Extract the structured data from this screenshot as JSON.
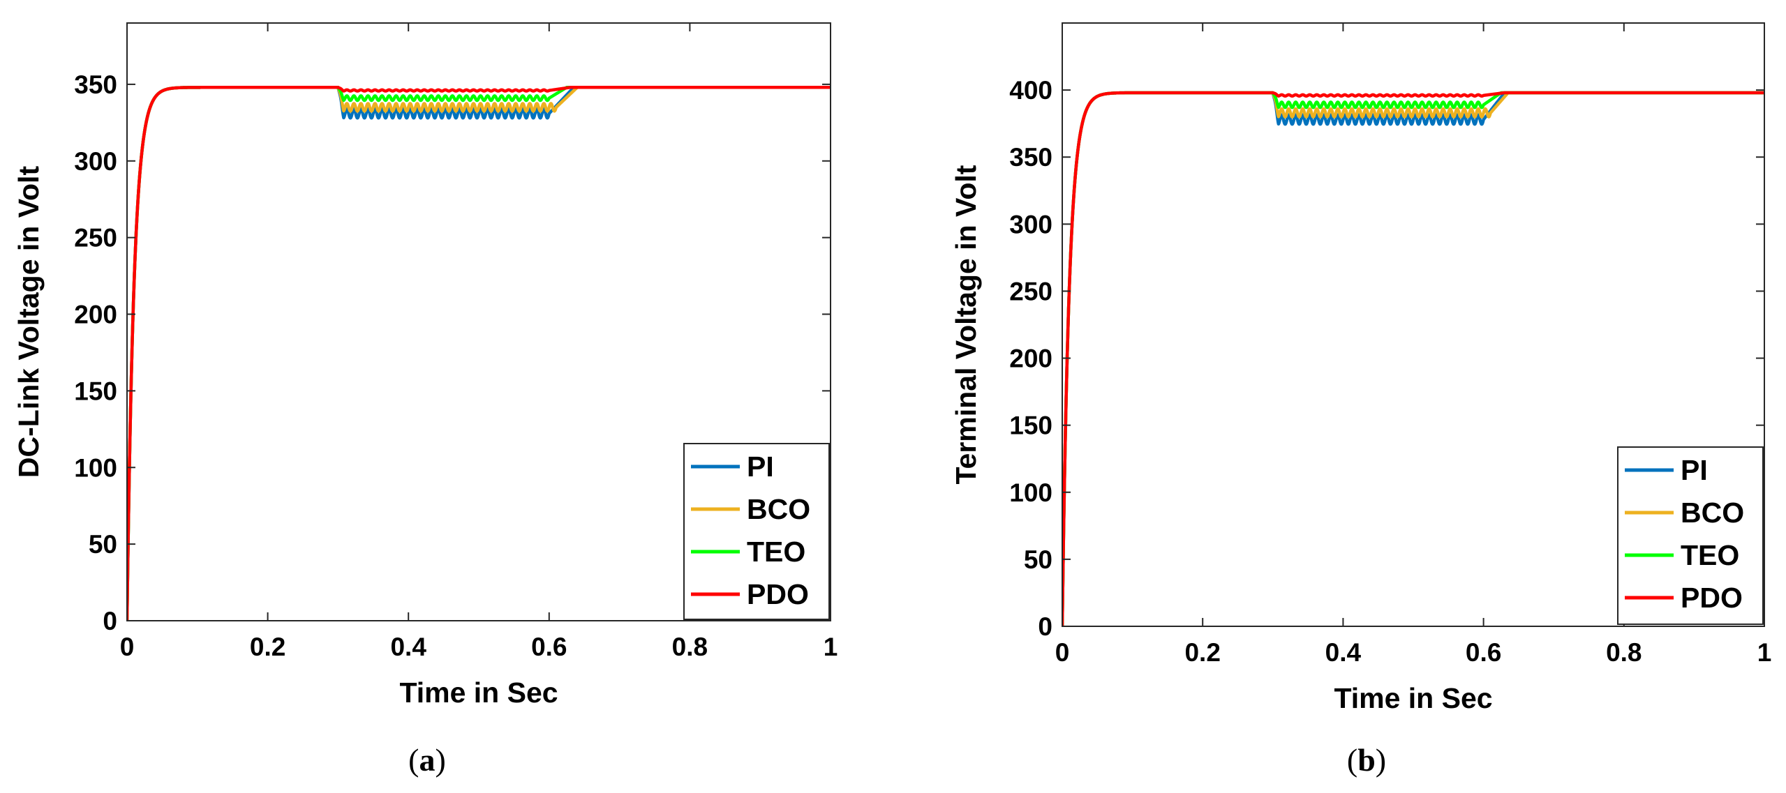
{
  "chart_data": [
    {
      "type": "line",
      "title": "",
      "caption": "a",
      "xlabel": "Time in Sec",
      "ylabel": "DC-Link Voltage in Volt",
      "xlim": [
        0,
        1
      ],
      "ylim": [
        0,
        390
      ],
      "xticks": [
        0,
        0.2,
        0.4,
        0.6,
        0.8,
        1
      ],
      "xtick_labels": [
        "0",
        "0.2",
        "0.4",
        "0.6",
        "0.8",
        "1"
      ],
      "yticks": [
        0,
        50,
        100,
        150,
        200,
        250,
        300,
        350
      ],
      "ytick_labels": [
        "0",
        "50",
        "100",
        "150",
        "200",
        "250",
        "300",
        "350"
      ],
      "legend_position": "bottom-right",
      "grid": false,
      "series": [
        {
          "name": "PI",
          "color": "#0072BD",
          "steady": 348,
          "rise_tau": 0.01,
          "dip_start": 0.3,
          "dip_end": 0.6,
          "dip_level": 331,
          "recover_end": 0.635,
          "ripple": 3,
          "ripple_freq": 50
        },
        {
          "name": "BCO",
          "color": "#EDB120",
          "steady": 348,
          "rise_tau": 0.01,
          "dip_start": 0.3,
          "dip_end": 0.61,
          "dip_level": 335,
          "recover_end": 0.64,
          "ripple": 2.5,
          "ripple_freq": 50
        },
        {
          "name": "TEO",
          "color": "#00FF00",
          "steady": 348,
          "rise_tau": 0.01,
          "dip_start": 0.3,
          "dip_end": 0.6,
          "dip_level": 341,
          "recover_end": 0.625,
          "ripple": 1.5,
          "ripple_freq": 50
        },
        {
          "name": "PDO",
          "color": "#FF0000",
          "steady": 348,
          "rise_tau": 0.01,
          "dip_start": 0.3,
          "dip_end": 0.6,
          "dip_level": 346,
          "recover_end": 0.63,
          "ripple": 0.4,
          "ripple_freq": 50
        }
      ]
    },
    {
      "type": "line",
      "title": "",
      "caption": "b",
      "xlabel": "Time in Sec",
      "ylabel": "Terminal Voltage in Volt",
      "xlim": [
        0,
        1
      ],
      "ylim": [
        0,
        450
      ],
      "xticks": [
        0,
        0.2,
        0.4,
        0.6,
        0.8,
        1
      ],
      "xtick_labels": [
        "0",
        "0.2",
        "0.4",
        "0.6",
        "0.8",
        "1"
      ],
      "yticks": [
        0,
        50,
        100,
        150,
        200,
        250,
        300,
        350,
        400
      ],
      "ytick_labels": [
        "0",
        "50",
        "100",
        "150",
        "200",
        "250",
        "300",
        "350",
        "400"
      ],
      "legend_position": "bottom-right",
      "grid": false,
      "series": [
        {
          "name": "PI",
          "color": "#0072BD",
          "steady": 398,
          "rise_tau": 0.01,
          "dip_start": 0.3,
          "dip_end": 0.6,
          "dip_level": 378,
          "recover_end": 0.63,
          "ripple": 3.5,
          "ripple_freq": 50
        },
        {
          "name": "BCO",
          "color": "#EDB120",
          "steady": 398,
          "rise_tau": 0.01,
          "dip_start": 0.3,
          "dip_end": 0.61,
          "dip_level": 383,
          "recover_end": 0.635,
          "ripple": 3,
          "ripple_freq": 50
        },
        {
          "name": "TEO",
          "color": "#00FF00",
          "steady": 398,
          "rise_tau": 0.01,
          "dip_start": 0.3,
          "dip_end": 0.6,
          "dip_level": 389,
          "recover_end": 0.625,
          "ripple": 2,
          "ripple_freq": 50
        },
        {
          "name": "PDO",
          "color": "#FF0000",
          "steady": 398,
          "rise_tau": 0.01,
          "dip_start": 0.3,
          "dip_end": 0.6,
          "dip_level": 396,
          "recover_end": 0.63,
          "ripple": 0.5,
          "ripple_freq": 50
        }
      ]
    }
  ]
}
